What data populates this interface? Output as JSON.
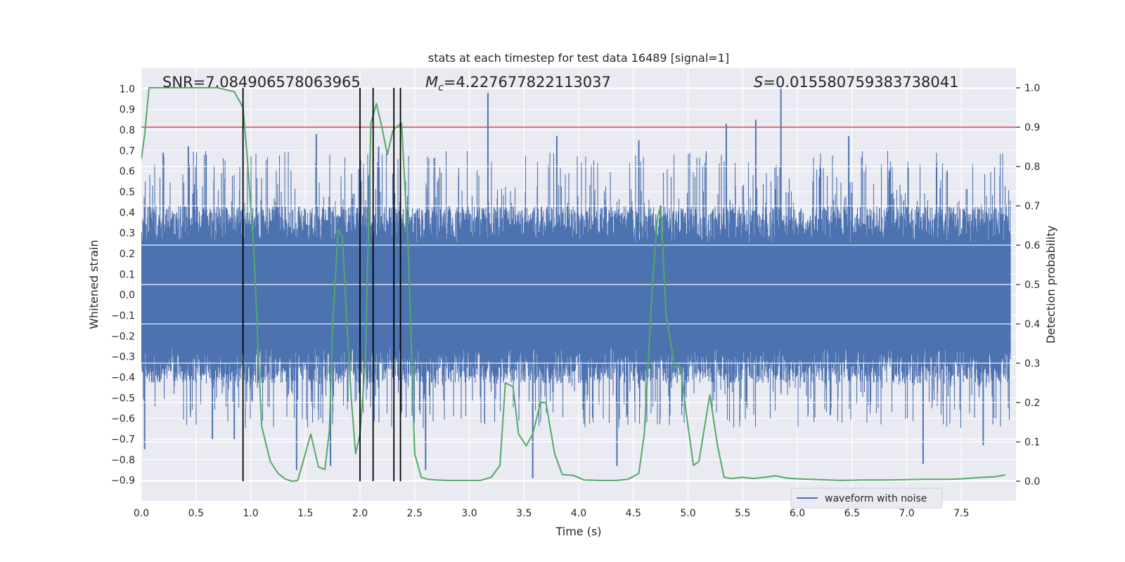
{
  "chart_data": {
    "type": "line",
    "title": "stats at each timestep for test data 16489 [signal=1]",
    "xlabel": "Time (s)",
    "ylabel_left": "Whitened strain",
    "ylabel_right": "Detection probability",
    "xlim": [
      0.0,
      8.0
    ],
    "ylim_left": [
      -1.0,
      1.1
    ],
    "ylim_right": [
      -0.05,
      1.05
    ],
    "x_ticks": [
      0.0,
      0.5,
      1.0,
      1.5,
      2.0,
      2.5,
      3.0,
      3.5,
      4.0,
      4.5,
      5.0,
      5.5,
      6.0,
      6.5,
      7.0,
      7.5
    ],
    "x_tick_labels": [
      "0.0",
      "0.5",
      "1.0",
      "1.5",
      "2.0",
      "2.5",
      "3.0",
      "3.5",
      "4.0",
      "4.5",
      "5.0",
      "5.5",
      "6.0",
      "6.5",
      "7.0",
      "7.5"
    ],
    "y_left_ticks": [
      -0.9,
      -0.8,
      -0.7,
      -0.6,
      -0.5,
      -0.4,
      -0.3,
      -0.2,
      -0.1,
      0.0,
      0.1,
      0.2,
      0.3,
      0.4,
      0.5,
      0.6,
      0.7,
      0.8,
      0.9,
      1.0
    ],
    "y_left_tick_labels": [
      "−0.9",
      "−0.8",
      "−0.7",
      "−0.6",
      "−0.5",
      "−0.4",
      "−0.3",
      "−0.2",
      "−0.1",
      "0.0",
      "0.1",
      "0.2",
      "0.3",
      "0.4",
      "0.5",
      "0.6",
      "0.7",
      "0.8",
      "0.9",
      "1.0"
    ],
    "y_right_ticks": [
      0.0,
      0.1,
      0.2,
      0.3,
      0.4,
      0.5,
      0.6,
      0.7,
      0.8,
      0.9,
      1.0
    ],
    "y_right_tick_labels": [
      "0.0",
      "0.1",
      "0.2",
      "0.3",
      "0.4",
      "0.5",
      "0.6",
      "0.7",
      "0.8",
      "0.9",
      "1.0"
    ],
    "grid": true,
    "legend_position": "lower-right",
    "annotations": {
      "snr": "SNR=7.084906578063965",
      "mc_symbol": "M",
      "mc_subscript": "c",
      "mc_value": "=4.227677822113037",
      "s_symbol": "S",
      "s_value": "=0.015580759383738041"
    },
    "series": [
      {
        "name": "waveform with noise",
        "axis": "left",
        "color": "#4c72b0",
        "kind": "noise-band",
        "envelope_typical": 0.55,
        "peaks": [
          {
            "x": 0.03,
            "y": -0.75
          },
          {
            "x": 0.2,
            "y": 0.69
          },
          {
            "x": 0.43,
            "y": 0.72
          },
          {
            "x": 0.65,
            "y": -0.7
          },
          {
            "x": 0.85,
            "y": -0.7
          },
          {
            "x": 1.42,
            "y": -0.85
          },
          {
            "x": 1.6,
            "y": 0.78
          },
          {
            "x": 1.73,
            "y": -0.83
          },
          {
            "x": 2.17,
            "y": 0.72
          },
          {
            "x": 2.6,
            "y": -0.85
          },
          {
            "x": 3.17,
            "y": 0.98
          },
          {
            "x": 3.58,
            "y": -0.89
          },
          {
            "x": 3.8,
            "y": 0.77
          },
          {
            "x": 4.35,
            "y": -0.83
          },
          {
            "x": 4.55,
            "y": 0.75
          },
          {
            "x": 5.35,
            "y": 0.83
          },
          {
            "x": 5.62,
            "y": 0.85
          },
          {
            "x": 5.85,
            "y": 1.0
          },
          {
            "x": 6.47,
            "y": 0.77
          },
          {
            "x": 7.15,
            "y": -0.82
          },
          {
            "x": 7.7,
            "y": -0.73
          }
        ]
      },
      {
        "name": "detection probability",
        "axis": "right",
        "color": "#55a868",
        "x": [
          0.0,
          0.03,
          0.07,
          0.15,
          0.3,
          0.5,
          0.7,
          0.85,
          0.93,
          0.97,
          1.03,
          1.1,
          1.18,
          1.25,
          1.32,
          1.38,
          1.43,
          1.48,
          1.55,
          1.62,
          1.68,
          1.72,
          1.75,
          1.8,
          1.84,
          1.88,
          1.92,
          1.96,
          2.0,
          2.05,
          2.1,
          2.15,
          2.2,
          2.25,
          2.3,
          2.33,
          2.38,
          2.44,
          2.5,
          2.56,
          2.62,
          2.7,
          2.8,
          3.0,
          3.1,
          3.2,
          3.28,
          3.33,
          3.4,
          3.45,
          3.52,
          3.58,
          3.65,
          3.7,
          3.78,
          3.85,
          3.95,
          4.05,
          4.2,
          4.35,
          4.45,
          4.5,
          4.55,
          4.6,
          4.68,
          4.72,
          4.75,
          4.8,
          4.88,
          4.93,
          5.0,
          5.05,
          5.1,
          5.2,
          5.27,
          5.33,
          5.4,
          5.5,
          5.6,
          5.7,
          5.8,
          5.9,
          6.0,
          6.2,
          6.4,
          6.6,
          6.8,
          7.0,
          7.2,
          7.4,
          7.5,
          7.7,
          7.8,
          7.9
        ],
        "y": [
          0.82,
          0.88,
          1.0,
          1.0,
          1.0,
          1.0,
          1.0,
          0.99,
          0.95,
          0.82,
          0.58,
          0.14,
          0.05,
          0.02,
          0.005,
          0.0,
          0.002,
          0.05,
          0.12,
          0.036,
          0.03,
          0.13,
          0.4,
          0.64,
          0.62,
          0.4,
          0.21,
          0.07,
          0.12,
          0.31,
          0.91,
          0.96,
          0.9,
          0.83,
          0.89,
          0.9,
          0.91,
          0.6,
          0.07,
          0.01,
          0.005,
          0.003,
          0.002,
          0.002,
          0.002,
          0.01,
          0.04,
          0.25,
          0.24,
          0.12,
          0.09,
          0.12,
          0.2,
          0.2,
          0.07,
          0.017,
          0.015,
          0.003,
          0.002,
          0.002,
          0.005,
          0.012,
          0.02,
          0.12,
          0.52,
          0.67,
          0.7,
          0.42,
          0.29,
          0.29,
          0.14,
          0.04,
          0.05,
          0.22,
          0.09,
          0.01,
          0.007,
          0.01,
          0.007,
          0.01,
          0.014,
          0.008,
          0.006,
          0.004,
          0.002,
          0.003,
          0.003,
          0.004,
          0.005,
          0.005,
          0.006,
          0.01,
          0.011,
          0.016
        ]
      }
    ],
    "hlines": [
      {
        "axis": "right",
        "y": 0.9,
        "color": "#c44e52"
      }
    ],
    "vlines": [
      0.93,
      2.0,
      2.12,
      2.31,
      2.37
    ],
    "vline_color": "#000000"
  },
  "colors": {
    "plot_background": "#eaeaf2",
    "grid": "#ffffff",
    "text": "#262626"
  }
}
